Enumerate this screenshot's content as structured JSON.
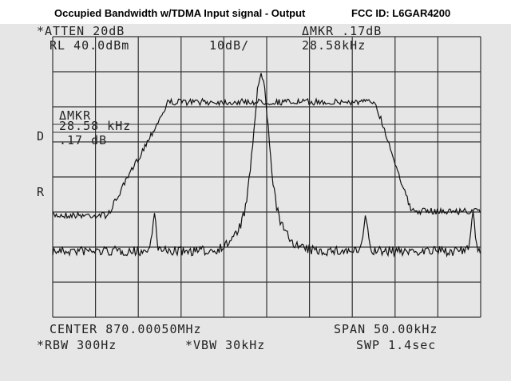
{
  "header": {
    "title": "Occupied Bandwidth w/TDMA Input signal - Output",
    "fcc_id": "FCC ID:  L6GAR4200"
  },
  "settings_top": {
    "atten": "*ATTEN 20dB",
    "ref_level": "RL 40.0dBm",
    "scale": "10dB/",
    "marker_delta": "ΔMKR .17dB",
    "marker_freq": "28.58kHz"
  },
  "marker_box": {
    "label": "ΔMKR",
    "freq": "28.58 kHz",
    "level": ".17 dB"
  },
  "side_labels": {
    "d": "D",
    "r": "R"
  },
  "settings_bottom": {
    "center": "CENTER 870.00050MHz",
    "span": "SPAN 50.00kHz",
    "rbw": "*RBW 300Hz",
    "vbw": "*VBW 30kHz",
    "sweep": "SWP 1.4sec"
  }
}
